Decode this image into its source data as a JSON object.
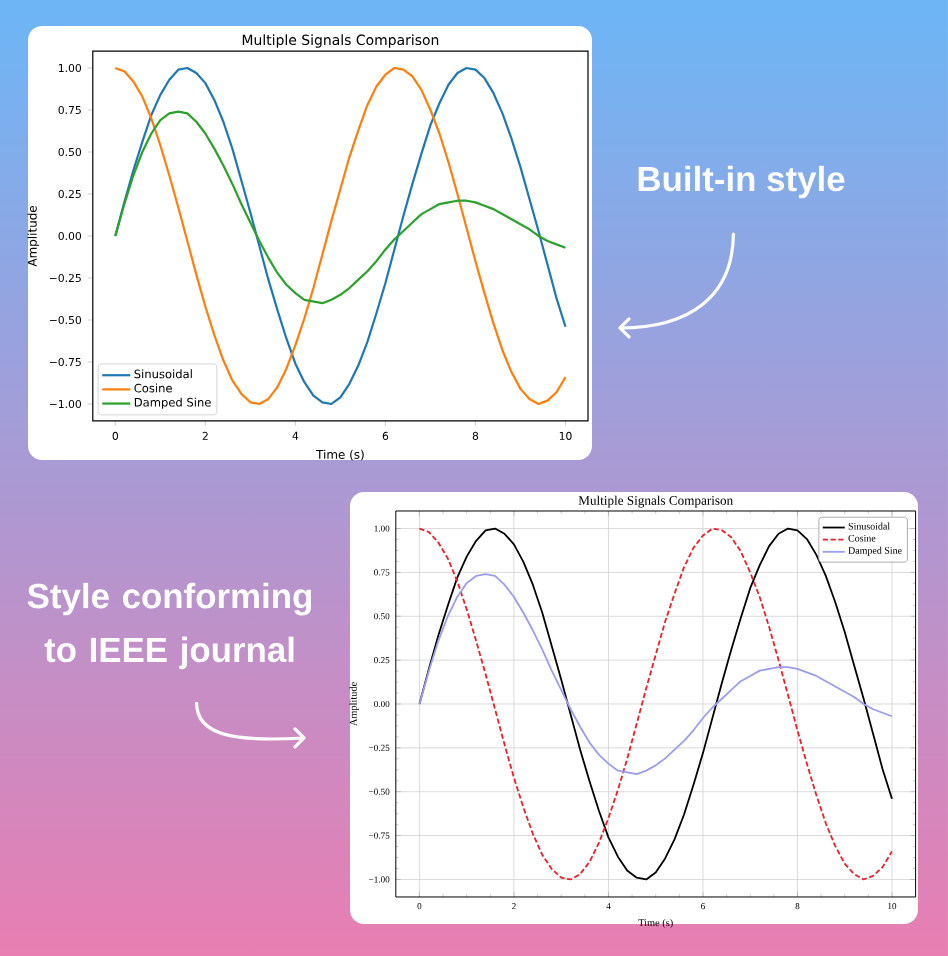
{
  "chart_data": [
    {
      "type": "line",
      "title": "Multiple Signals Comparison",
      "xlabel": "Time (s)",
      "ylabel": "Amplitude",
      "x": [
        0,
        0.2,
        0.4,
        0.6,
        0.8,
        1,
        1.2,
        1.4,
        1.6,
        1.8,
        2,
        2.2,
        2.4,
        2.6,
        2.8,
        3,
        3.2,
        3.4,
        3.6,
        3.8,
        4,
        4.2,
        4.4,
        4.6,
        4.8,
        5,
        5.2,
        5.4,
        5.6,
        5.8,
        6,
        6.2,
        6.4,
        6.6,
        6.8,
        7,
        7.2,
        7.4,
        7.6,
        7.8,
        8,
        8.2,
        8.4,
        8.6,
        8.8,
        9,
        9.2,
        9.4,
        9.6,
        9.8,
        10
      ],
      "series": [
        {
          "name": "Sinusoidal",
          "color": "#1f77b4",
          "values": [
            0,
            0.2,
            0.39,
            0.56,
            0.72,
            0.84,
            0.93,
            0.99,
            1.0,
            0.97,
            0.91,
            0.81,
            0.68,
            0.52,
            0.33,
            0.14,
            -0.06,
            -0.26,
            -0.44,
            -0.61,
            -0.76,
            -0.87,
            -0.95,
            -0.99,
            -1.0,
            -0.96,
            -0.88,
            -0.77,
            -0.63,
            -0.46,
            -0.28,
            -0.08,
            0.12,
            0.31,
            0.49,
            0.66,
            0.79,
            0.9,
            0.97,
            1.0,
            0.99,
            0.94,
            0.85,
            0.73,
            0.58,
            0.41,
            0.22,
            0.03,
            -0.17,
            -0.37,
            -0.54
          ]
        },
        {
          "name": "Cosine",
          "color": "#ff7f0e",
          "values": [
            1.0,
            0.98,
            0.92,
            0.83,
            0.7,
            0.54,
            0.36,
            0.17,
            -0.03,
            -0.23,
            -0.42,
            -0.59,
            -0.74,
            -0.86,
            -0.94,
            -0.99,
            -1.0,
            -0.97,
            -0.9,
            -0.79,
            -0.65,
            -0.49,
            -0.31,
            -0.11,
            0.09,
            0.28,
            0.47,
            0.63,
            0.78,
            0.89,
            0.96,
            1.0,
            0.99,
            0.95,
            0.87,
            0.75,
            0.61,
            0.44,
            0.25,
            0.05,
            -0.15,
            -0.34,
            -0.52,
            -0.68,
            -0.81,
            -0.91,
            -0.97,
            -1.0,
            -0.98,
            -0.93,
            -0.84
          ]
        },
        {
          "name": "Damped Sine",
          "color": "#2ca02c",
          "values": [
            0,
            0.19,
            0.36,
            0.5,
            0.61,
            0.69,
            0.73,
            0.74,
            0.73,
            0.68,
            0.61,
            0.52,
            0.42,
            0.31,
            0.19,
            0.08,
            -0.03,
            -0.13,
            -0.22,
            -0.29,
            -0.34,
            -0.38,
            -0.39,
            -0.4,
            -0.38,
            -0.35,
            -0.31,
            -0.26,
            -0.21,
            -0.15,
            -0.08,
            -0.02,
            0.03,
            0.08,
            0.13,
            0.16,
            0.19,
            0.2,
            0.21,
            0.21,
            0.2,
            0.18,
            0.16,
            0.13,
            0.1,
            0.07,
            0.04,
            0.0,
            -0.03,
            -0.05,
            -0.07
          ]
        }
      ],
      "xlim": [
        -0.5,
        10.5
      ],
      "xticks": [
        0,
        2,
        4,
        6,
        8,
        10
      ],
      "ylim": [
        -1.1,
        1.1
      ],
      "yticks": [
        {
          "value": -1,
          "label": "−1.00"
        },
        {
          "value": -0.75,
          "label": "−0.75"
        },
        {
          "value": -0.5,
          "label": "−0.50"
        },
        {
          "value": -0.25,
          "label": "−0.25"
        },
        {
          "value": 0,
          "label": "0.00"
        },
        {
          "value": 0.25,
          "label": "0.25"
        },
        {
          "value": 0.5,
          "label": "0.50"
        },
        {
          "value": 0.75,
          "label": "0.75"
        },
        {
          "value": 1,
          "label": "1.00"
        }
      ],
      "legend": "bottom left",
      "annotations": [
        "Built-in style"
      ]
    },
    {
      "type": "line",
      "title": "Multiple Signals Comparison",
      "xlabel": "Time (s)",
      "ylabel": "Amplitude",
      "x": [
        0,
        0.2,
        0.4,
        0.6,
        0.8,
        1,
        1.2,
        1.4,
        1.6,
        1.8,
        2,
        2.2,
        2.4,
        2.6,
        2.8,
        3,
        3.2,
        3.4,
        3.6,
        3.8,
        4,
        4.2,
        4.4,
        4.6,
        4.8,
        5,
        5.2,
        5.4,
        5.6,
        5.8,
        6,
        6.2,
        6.4,
        6.6,
        6.8,
        7,
        7.2,
        7.4,
        7.6,
        7.8,
        8,
        8.2,
        8.4,
        8.6,
        8.8,
        9,
        9.2,
        9.4,
        9.6,
        9.8,
        10
      ],
      "series": [
        {
          "name": "Sinusoidal",
          "color": "#000000",
          "values": [
            0,
            0.2,
            0.39,
            0.56,
            0.72,
            0.84,
            0.93,
            0.99,
            1.0,
            0.97,
            0.91,
            0.81,
            0.68,
            0.52,
            0.33,
            0.14,
            -0.06,
            -0.26,
            -0.44,
            -0.61,
            -0.76,
            -0.87,
            -0.95,
            -0.99,
            -1.0,
            -0.96,
            -0.88,
            -0.77,
            -0.63,
            -0.46,
            -0.28,
            -0.08,
            0.12,
            0.31,
            0.49,
            0.66,
            0.79,
            0.9,
            0.97,
            1.0,
            0.99,
            0.94,
            0.85,
            0.73,
            0.58,
            0.41,
            0.22,
            0.03,
            -0.17,
            -0.37,
            -0.54
          ]
        },
        {
          "name": "Cosine",
          "color": "#e8202a",
          "line_style": "dashed",
          "values": [
            1.0,
            0.98,
            0.92,
            0.83,
            0.7,
            0.54,
            0.36,
            0.17,
            -0.03,
            -0.23,
            -0.42,
            -0.59,
            -0.74,
            -0.86,
            -0.94,
            -0.99,
            -1.0,
            -0.97,
            -0.9,
            -0.79,
            -0.65,
            -0.49,
            -0.31,
            -0.11,
            0.09,
            0.28,
            0.47,
            0.63,
            0.78,
            0.89,
            0.96,
            1.0,
            0.99,
            0.95,
            0.87,
            0.75,
            0.61,
            0.44,
            0.25,
            0.05,
            -0.15,
            -0.34,
            -0.52,
            -0.68,
            -0.81,
            -0.91,
            -0.97,
            -1.0,
            -0.98,
            -0.93,
            -0.84
          ]
        },
        {
          "name": "Damped Sine",
          "color": "#9c9cf0",
          "values": [
            0,
            0.19,
            0.36,
            0.5,
            0.61,
            0.69,
            0.73,
            0.74,
            0.73,
            0.68,
            0.61,
            0.52,
            0.42,
            0.31,
            0.19,
            0.08,
            -0.03,
            -0.13,
            -0.22,
            -0.29,
            -0.34,
            -0.38,
            -0.39,
            -0.4,
            -0.38,
            -0.35,
            -0.31,
            -0.26,
            -0.21,
            -0.15,
            -0.08,
            -0.02,
            0.03,
            0.08,
            0.13,
            0.16,
            0.19,
            0.2,
            0.21,
            0.21,
            0.2,
            0.18,
            0.16,
            0.13,
            0.1,
            0.07,
            0.04,
            0.0,
            -0.03,
            -0.05,
            -0.07
          ]
        }
      ],
      "xlim": [
        -0.5,
        10.5
      ],
      "xticks": [
        0,
        2,
        4,
        6,
        8,
        10
      ],
      "ylim": [
        -1.1,
        1.1
      ],
      "yticks": [
        {
          "value": -1,
          "label": "−1.00"
        },
        {
          "value": -0.75,
          "label": "−0.75"
        },
        {
          "value": -0.5,
          "label": "−0.50"
        },
        {
          "value": -0.25,
          "label": "−0.25"
        },
        {
          "value": 0,
          "label": "0.00"
        },
        {
          "value": 0.25,
          "label": "0.25"
        },
        {
          "value": 0.5,
          "label": "0.50"
        },
        {
          "value": 0.75,
          "label": "0.75"
        },
        {
          "value": 1,
          "label": "1.00"
        }
      ],
      "grid": true,
      "legend": "top right",
      "annotations": [
        "Style conforming to IEEE journal"
      ]
    }
  ]
}
